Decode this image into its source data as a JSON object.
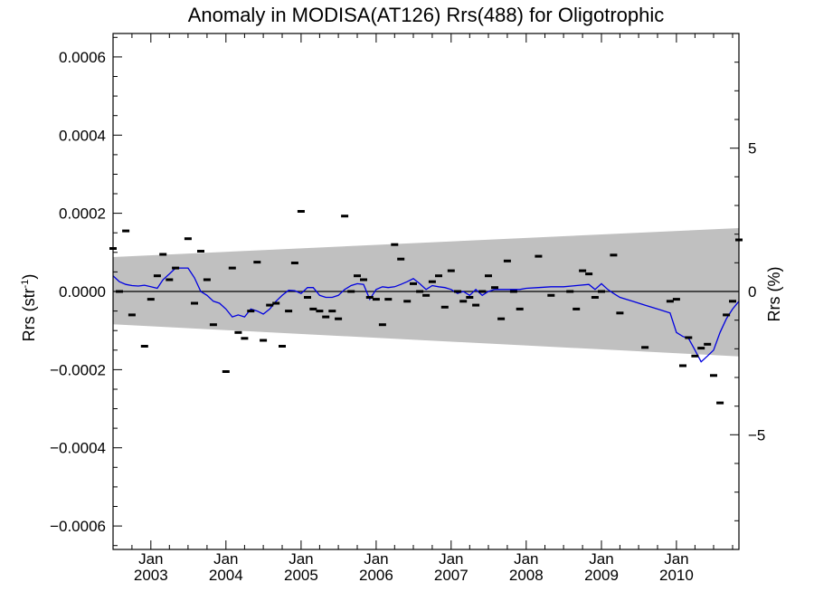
{
  "chart_data": {
    "type": "scatter",
    "title": "Anomaly in MODISA(AT126) Rrs(488) for Oligotrophic",
    "ylabel_left": "Rrs (str",
    "ylabel_left_sup": "-1",
    "ylabel_left_close": ")",
    "ylabel_right": "Rrs (%)",
    "xlim": [
      "2002-07-01",
      "2010-11-01"
    ],
    "ylim": [
      -0.00066,
      0.00066
    ],
    "y2lim": [
      -9.0,
      9.0
    ],
    "left_ticks": [
      {
        "value": 0.0006,
        "label": "0.0006"
      },
      {
        "value": 0.0004,
        "label": "0.0004"
      },
      {
        "value": 0.0002,
        "label": "0.0002"
      },
      {
        "value": 0.0,
        "label": "0.0000"
      },
      {
        "value": -0.0002,
        "label": "−0.0002"
      },
      {
        "value": -0.0004,
        "label": "−0.0004"
      },
      {
        "value": -0.0006,
        "label": "−0.0006"
      }
    ],
    "right_ticks": [
      {
        "value": 5,
        "label": "5"
      },
      {
        "value": 0,
        "label": "0"
      },
      {
        "value": -5,
        "label": "−5"
      }
    ],
    "x_ticks": [
      {
        "date": "2003-01-01",
        "month": "Jan",
        "year": "2003"
      },
      {
        "date": "2004-01-01",
        "month": "Jan",
        "year": "2004"
      },
      {
        "date": "2005-01-01",
        "month": "Jan",
        "year": "2005"
      },
      {
        "date": "2006-01-01",
        "month": "Jan",
        "year": "2006"
      },
      {
        "date": "2007-01-01",
        "month": "Jan",
        "year": "2007"
      },
      {
        "date": "2008-01-01",
        "month": "Jan",
        "year": "2008"
      },
      {
        "date": "2009-01-01",
        "month": "Jan",
        "year": "2009"
      },
      {
        "date": "2010-01-01",
        "month": "Jan",
        "year": "2010"
      }
    ],
    "band": {
      "start": "2002-07-01",
      "end": "2010-11-01",
      "upper": [
        8.8e-05,
        0.000162
      ],
      "lower": [
        -8.4e-05,
        -0.000166
      ],
      "color": "#c0c0c0"
    },
    "zero_line": 0,
    "series": [
      {
        "kind": "points",
        "color": "#000000",
        "points": [
          {
            "x": "2002-07-01",
            "y": 0.00011
          },
          {
            "x": "2002-08-01",
            "y": 0.0
          },
          {
            "x": "2002-09-01",
            "y": 0.000155
          },
          {
            "x": "2002-10-01",
            "y": -6e-05
          },
          {
            "x": "2002-12-01",
            "y": -0.00014
          },
          {
            "x": "2003-01-01",
            "y": -2e-05
          },
          {
            "x": "2003-02-01",
            "y": 4e-05
          },
          {
            "x": "2003-03-01",
            "y": 9.5e-05
          },
          {
            "x": "2003-04-01",
            "y": 3e-05
          },
          {
            "x": "2003-05-01",
            "y": 6e-05
          },
          {
            "x": "2003-07-01",
            "y": 0.000135
          },
          {
            "x": "2003-08-01",
            "y": -3e-05
          },
          {
            "x": "2003-09-01",
            "y": 0.000103
          },
          {
            "x": "2003-10-01",
            "y": 3e-05
          },
          {
            "x": "2003-11-01",
            "y": -8.5e-05
          },
          {
            "x": "2004-01-01",
            "y": -0.000205
          },
          {
            "x": "2004-02-01",
            "y": 6e-05
          },
          {
            "x": "2004-03-01",
            "y": -0.000105
          },
          {
            "x": "2004-04-01",
            "y": -0.00012
          },
          {
            "x": "2004-05-01",
            "y": -5e-05
          },
          {
            "x": "2004-06-01",
            "y": 7.5e-05
          },
          {
            "x": "2004-07-01",
            "y": -0.000125
          },
          {
            "x": "2004-08-01",
            "y": -3.5e-05
          },
          {
            "x": "2004-09-01",
            "y": -3e-05
          },
          {
            "x": "2004-10-01",
            "y": -0.00014
          },
          {
            "x": "2004-11-01",
            "y": -5e-05
          },
          {
            "x": "2004-12-01",
            "y": 7.3e-05
          },
          {
            "x": "2005-01-01",
            "y": 0.000205
          },
          {
            "x": "2005-02-01",
            "y": -1.5e-05
          },
          {
            "x": "2005-03-01",
            "y": -4.5e-05
          },
          {
            "x": "2005-04-01",
            "y": -5e-05
          },
          {
            "x": "2005-05-01",
            "y": -6.5e-05
          },
          {
            "x": "2005-06-01",
            "y": -5e-05
          },
          {
            "x": "2005-07-01",
            "y": -7e-05
          },
          {
            "x": "2005-08-01",
            "y": 0.000193
          },
          {
            "x": "2005-09-01",
            "y": 0.0
          },
          {
            "x": "2005-10-01",
            "y": 4e-05
          },
          {
            "x": "2005-11-01",
            "y": 3e-05
          },
          {
            "x": "2005-12-01",
            "y": -1.5e-05
          },
          {
            "x": "2006-01-01",
            "y": -2e-05
          },
          {
            "x": "2006-02-01",
            "y": -8.5e-05
          },
          {
            "x": "2006-03-01",
            "y": -2e-05
          },
          {
            "x": "2006-04-01",
            "y": 0.00012
          },
          {
            "x": "2006-05-01",
            "y": 8.3e-05
          },
          {
            "x": "2006-06-01",
            "y": -2.5e-05
          },
          {
            "x": "2006-07-01",
            "y": 2e-05
          },
          {
            "x": "2006-08-01",
            "y": 0.0
          },
          {
            "x": "2006-09-01",
            "y": -1e-05
          },
          {
            "x": "2006-10-01",
            "y": 2.5e-05
          },
          {
            "x": "2006-11-01",
            "y": 4e-05
          },
          {
            "x": "2006-12-01",
            "y": -4e-05
          },
          {
            "x": "2007-01-01",
            "y": 5.3e-05
          },
          {
            "x": "2007-02-01",
            "y": 0.0
          },
          {
            "x": "2007-03-01",
            "y": -2.5e-05
          },
          {
            "x": "2007-04-01",
            "y": -1.5e-05
          },
          {
            "x": "2007-05-01",
            "y": -3.5e-05
          },
          {
            "x": "2007-06-01",
            "y": 0.0
          },
          {
            "x": "2007-07-01",
            "y": 4e-05
          },
          {
            "x": "2007-08-01",
            "y": 1e-05
          },
          {
            "x": "2007-09-01",
            "y": -7e-05
          },
          {
            "x": "2007-10-01",
            "y": 7.8e-05
          },
          {
            "x": "2007-11-01",
            "y": 0.0
          },
          {
            "x": "2007-12-01",
            "y": -4.5e-05
          },
          {
            "x": "2008-03-01",
            "y": 9e-05
          },
          {
            "x": "2008-05-01",
            "y": -1e-05
          },
          {
            "x": "2008-08-01",
            "y": 0.0
          },
          {
            "x": "2008-09-01",
            "y": -4.5e-05
          },
          {
            "x": "2008-10-01",
            "y": 5.3e-05
          },
          {
            "x": "2008-11-01",
            "y": 4.5e-05
          },
          {
            "x": "2008-12-01",
            "y": -1.5e-05
          },
          {
            "x": "2009-01-01",
            "y": 0.0
          },
          {
            "x": "2009-03-01",
            "y": 9.3e-05
          },
          {
            "x": "2009-04-01",
            "y": -5.5e-05
          },
          {
            "x": "2009-08-01",
            "y": -0.000143
          },
          {
            "x": "2009-12-01",
            "y": -2.5e-05
          },
          {
            "x": "2010-01-01",
            "y": -2e-05
          },
          {
            "x": "2010-02-01",
            "y": -0.00019
          },
          {
            "x": "2010-03-01",
            "y": -0.000118
          },
          {
            "x": "2010-04-01",
            "y": -0.000165
          },
          {
            "x": "2010-05-01",
            "y": -0.000145
          },
          {
            "x": "2010-06-01",
            "y": -0.000135
          },
          {
            "x": "2010-07-01",
            "y": -0.000215
          },
          {
            "x": "2010-08-01",
            "y": -0.000285
          },
          {
            "x": "2010-09-01",
            "y": -6e-05
          },
          {
            "x": "2010-10-01",
            "y": -2.5e-05
          },
          {
            "x": "2010-11-01",
            "y": 0.000132
          }
        ]
      },
      {
        "kind": "line",
        "color": "#0000e0",
        "points": [
          {
            "x": "2002-07-01",
            "y": 4e-05
          },
          {
            "x": "2002-08-01",
            "y": 2.5e-05
          },
          {
            "x": "2002-09-01",
            "y": 1.8e-05
          },
          {
            "x": "2002-10-01",
            "y": 1.5e-05
          },
          {
            "x": "2002-11-01",
            "y": 1.4e-05
          },
          {
            "x": "2002-12-01",
            "y": 1.6e-05
          },
          {
            "x": "2003-01-01",
            "y": 1.2e-05
          },
          {
            "x": "2003-02-01",
            "y": 8e-06
          },
          {
            "x": "2003-03-01",
            "y": 3e-05
          },
          {
            "x": "2003-04-01",
            "y": 4.5e-05
          },
          {
            "x": "2003-05-01",
            "y": 6e-05
          },
          {
            "x": "2003-06-01",
            "y": 6e-05
          },
          {
            "x": "2003-07-01",
            "y": 6e-05
          },
          {
            "x": "2003-08-01",
            "y": 3.5e-05
          },
          {
            "x": "2003-09-01",
            "y": 0.0
          },
          {
            "x": "2003-10-01",
            "y": -1e-05
          },
          {
            "x": "2003-11-01",
            "y": -2.5e-05
          },
          {
            "x": "2003-12-01",
            "y": -3e-05
          },
          {
            "x": "2004-01-01",
            "y": -4.5e-05
          },
          {
            "x": "2004-02-01",
            "y": -6.5e-05
          },
          {
            "x": "2004-03-01",
            "y": -6e-05
          },
          {
            "x": "2004-04-01",
            "y": -6.5e-05
          },
          {
            "x": "2004-05-01",
            "y": -4.5e-05
          },
          {
            "x": "2004-06-01",
            "y": -5e-05
          },
          {
            "x": "2004-07-01",
            "y": -5.8e-05
          },
          {
            "x": "2004-08-01",
            "y": -4.5e-05
          },
          {
            "x": "2004-09-01",
            "y": -2.5e-05
          },
          {
            "x": "2004-10-01",
            "y": -1e-05
          },
          {
            "x": "2004-11-01",
            "y": 3e-06
          },
          {
            "x": "2004-12-01",
            "y": 2e-06
          },
          {
            "x": "2005-01-01",
            "y": -5e-06
          },
          {
            "x": "2005-02-01",
            "y": 1e-05
          },
          {
            "x": "2005-03-01",
            "y": 1e-05
          },
          {
            "x": "2005-04-01",
            "y": -1e-05
          },
          {
            "x": "2005-05-01",
            "y": -1.5e-05
          },
          {
            "x": "2005-06-01",
            "y": -1.5e-05
          },
          {
            "x": "2005-07-01",
            "y": -1e-05
          },
          {
            "x": "2005-08-01",
            "y": 5e-06
          },
          {
            "x": "2005-09-01",
            "y": 1.5e-05
          },
          {
            "x": "2005-10-01",
            "y": 2e-05
          },
          {
            "x": "2005-11-01",
            "y": 1.8e-05
          },
          {
            "x": "2005-12-01",
            "y": -2e-05
          },
          {
            "x": "2006-01-01",
            "y": 5e-06
          },
          {
            "x": "2006-02-01",
            "y": 1.2e-05
          },
          {
            "x": "2006-03-01",
            "y": 1e-05
          },
          {
            "x": "2006-04-01",
            "y": 1.2e-05
          },
          {
            "x": "2006-05-01",
            "y": 1.8e-05
          },
          {
            "x": "2006-06-01",
            "y": 2.5e-05
          },
          {
            "x": "2006-07-01",
            "y": 3.3e-05
          },
          {
            "x": "2006-08-01",
            "y": 2e-05
          },
          {
            "x": "2006-09-01",
            "y": 5e-06
          },
          {
            "x": "2006-10-01",
            "y": 1.5e-05
          },
          {
            "x": "2006-11-01",
            "y": 1.2e-05
          },
          {
            "x": "2006-12-01",
            "y": 1e-05
          },
          {
            "x": "2007-01-01",
            "y": 5e-06
          },
          {
            "x": "2007-02-01",
            "y": -5e-06
          },
          {
            "x": "2007-03-01",
            "y": 0.0
          },
          {
            "x": "2007-04-01",
            "y": -1e-05
          },
          {
            "x": "2007-05-01",
            "y": 5e-06
          },
          {
            "x": "2007-06-01",
            "y": -1e-05
          },
          {
            "x": "2007-07-01",
            "y": 0.0
          },
          {
            "x": "2007-08-01",
            "y": 5e-06
          },
          {
            "x": "2007-09-01",
            "y": 5e-06
          },
          {
            "x": "2007-10-01",
            "y": 5e-06
          },
          {
            "x": "2007-11-01",
            "y": 5e-06
          },
          {
            "x": "2007-12-01",
            "y": 5e-06
          },
          {
            "x": "2008-01-01",
            "y": 8e-06
          },
          {
            "x": "2008-03-01",
            "y": 1e-05
          },
          {
            "x": "2008-05-01",
            "y": 1.2e-05
          },
          {
            "x": "2008-07-01",
            "y": 1.2e-05
          },
          {
            "x": "2008-09-01",
            "y": 1.5e-05
          },
          {
            "x": "2008-11-01",
            "y": 1.8e-05
          },
          {
            "x": "2008-12-01",
            "y": 5e-06
          },
          {
            "x": "2009-01-01",
            "y": 2e-05
          },
          {
            "x": "2009-02-01",
            "y": 5e-06
          },
          {
            "x": "2009-03-01",
            "y": -5e-06
          },
          {
            "x": "2009-04-01",
            "y": -1.5e-05
          },
          {
            "x": "2009-06-01",
            "y": -2.5e-05
          },
          {
            "x": "2009-08-01",
            "y": -3.5e-05
          },
          {
            "x": "2009-10-01",
            "y": -4.5e-05
          },
          {
            "x": "2009-12-01",
            "y": -5.5e-05
          },
          {
            "x": "2010-01-01",
            "y": -0.000105
          },
          {
            "x": "2010-02-01",
            "y": -0.000115
          },
          {
            "x": "2010-03-01",
            "y": -0.00012
          },
          {
            "x": "2010-04-01",
            "y": -0.00015
          },
          {
            "x": "2010-05-01",
            "y": -0.00018
          },
          {
            "x": "2010-06-01",
            "y": -0.000165
          },
          {
            "x": "2010-07-01",
            "y": -0.00015
          },
          {
            "x": "2010-08-01",
            "y": -0.000105
          },
          {
            "x": "2010-09-01",
            "y": -7e-05
          },
          {
            "x": "2010-10-01",
            "y": -4.5e-05
          },
          {
            "x": "2010-11-01",
            "y": -2.5e-05
          }
        ]
      }
    ]
  }
}
